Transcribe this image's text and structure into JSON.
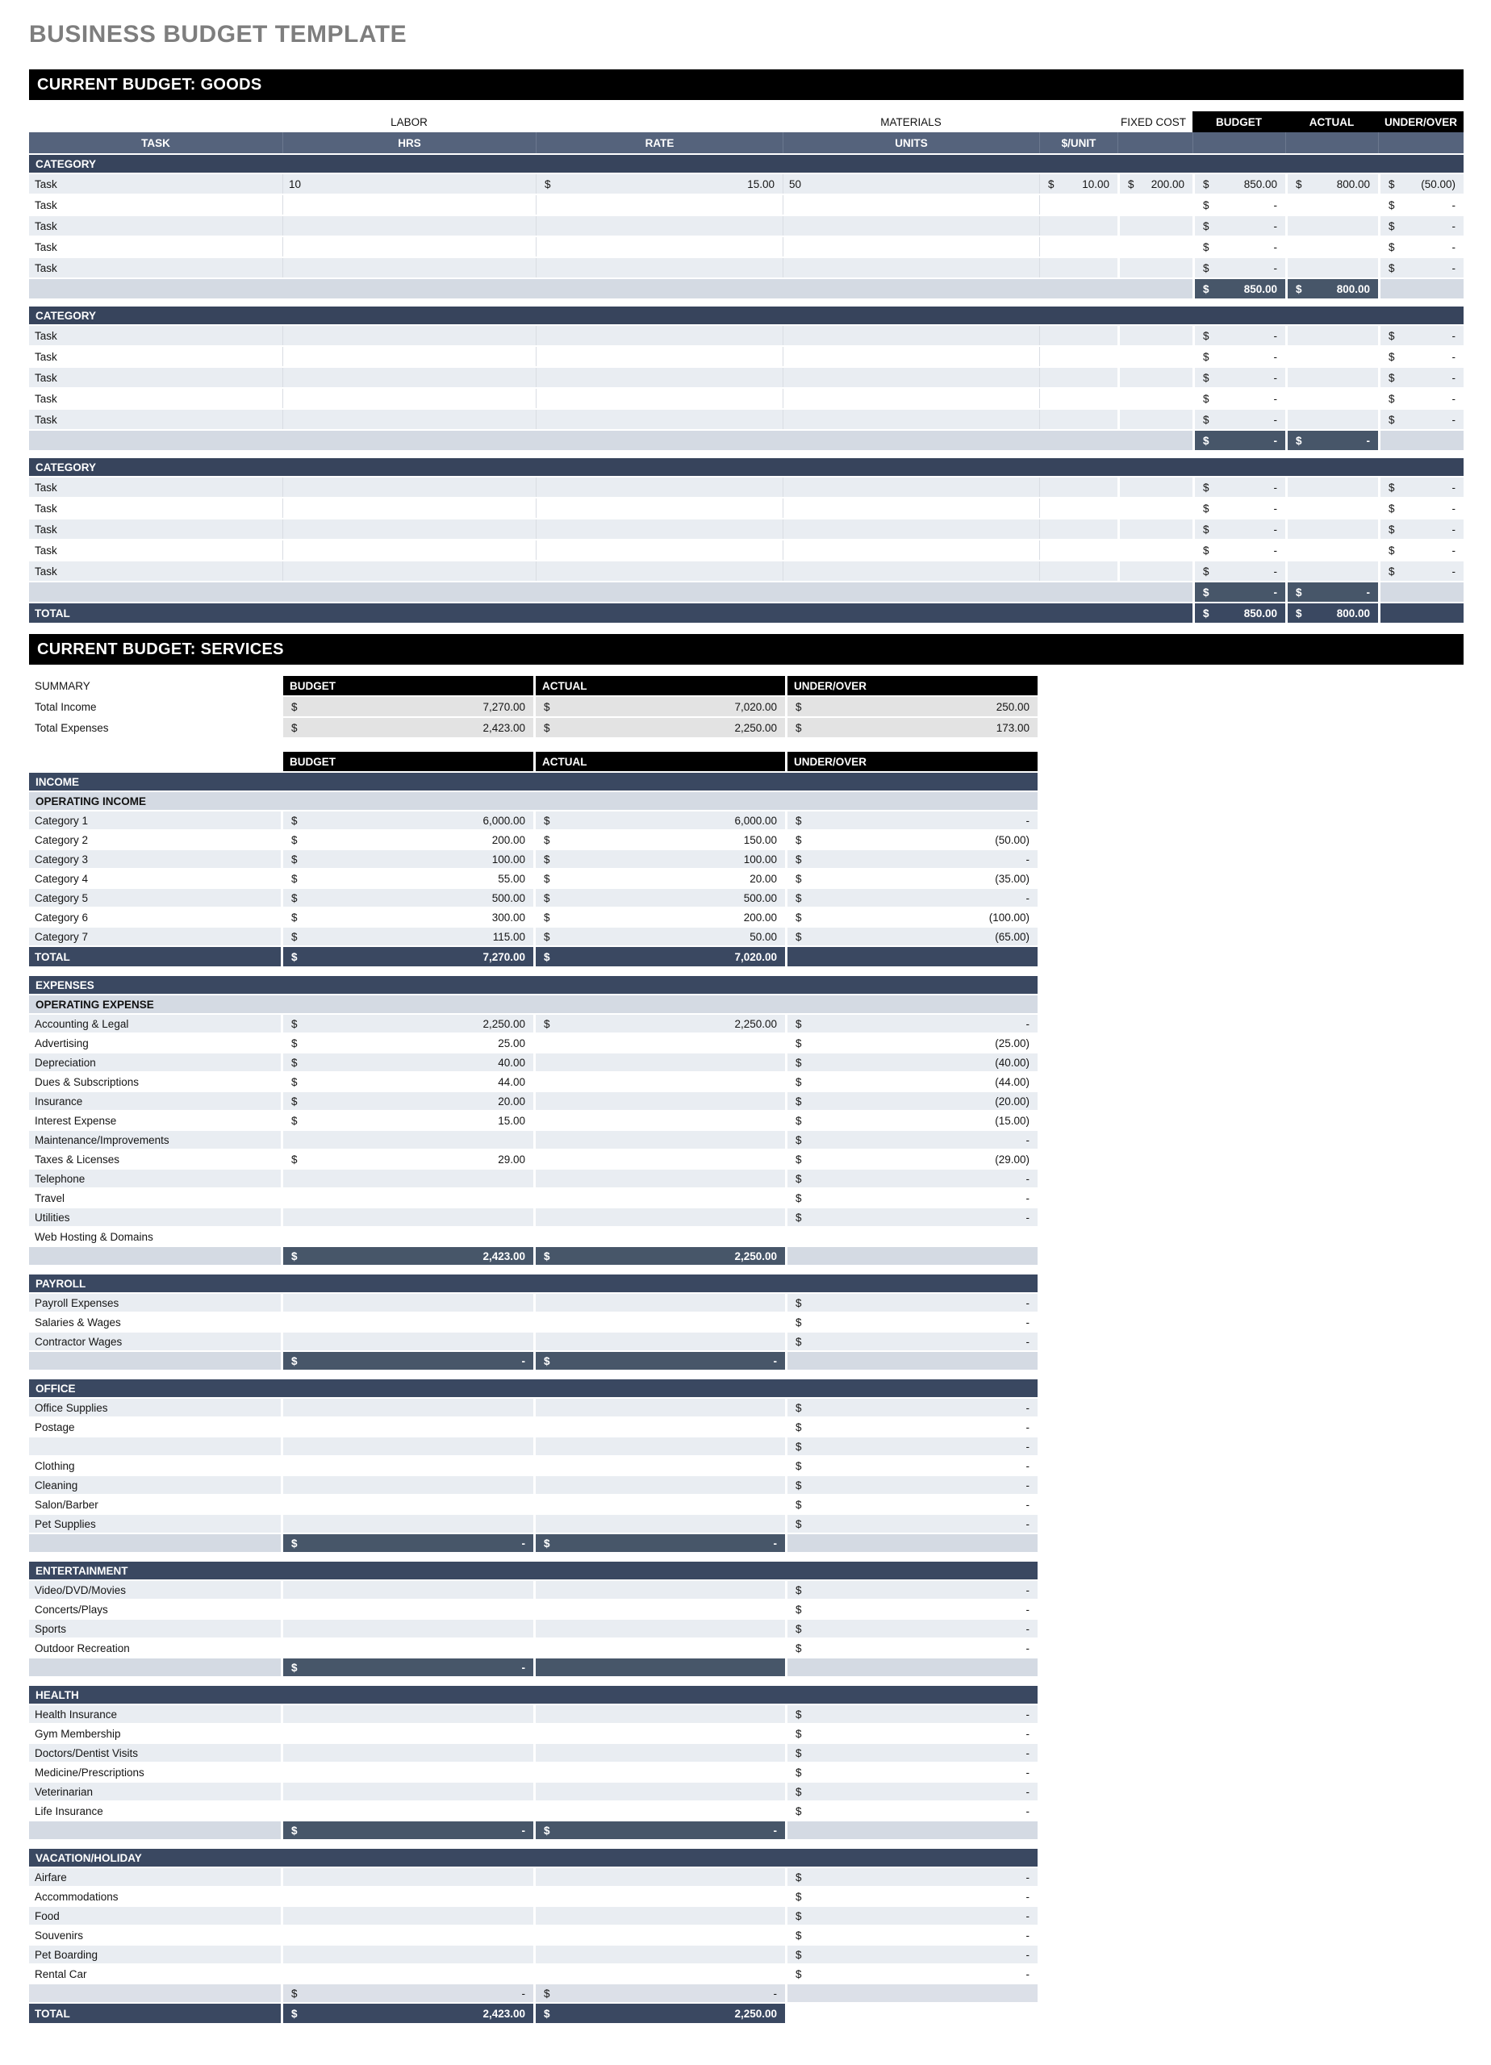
{
  "page": {
    "title": "BUSINESS BUDGET TEMPLATE"
  },
  "colors": {
    "banner_bg": "#000000",
    "section_band": "#3a4861",
    "header_band": "#55637c",
    "category_band": "#37445c",
    "subtotal_dark": "#475669",
    "stripe_light": "#e9edf2",
    "subband_light": "#d4dae3",
    "summary_cell": "#e3e3e3",
    "title_gray": "#7e7e7e"
  },
  "goods": {
    "banner": "CURRENT BUDGET: GOODS",
    "group_labels": {
      "labor": "LABOR",
      "materials": "MATERIALS",
      "fixed_cost": "FIXED COST",
      "budget": "BUDGET",
      "actual": "ACTUAL",
      "under_over": "UNDER/OVER"
    },
    "columns": [
      "TASK",
      "HRS",
      "RATE",
      "UNITS",
      "$/UNIT"
    ],
    "categories": [
      {
        "label": "CATEGORY",
        "rows": [
          {
            "task": "Task",
            "hrs": "10",
            "rate": [
              "$",
              "15.00"
            ],
            "units": "50",
            "unit": [
              "$",
              "10.00"
            ],
            "fixed": [
              "$",
              "200.00"
            ],
            "b": [
              "$",
              "850.00"
            ],
            "a": [
              "$",
              "800.00"
            ],
            "u": [
              "$",
              "(50.00)"
            ]
          },
          {
            "task": "Task",
            "b": [
              "$",
              "-"
            ],
            "u": [
              "$",
              "-"
            ]
          },
          {
            "task": "Task",
            "b": [
              "$",
              "-"
            ],
            "u": [
              "$",
              "-"
            ]
          },
          {
            "task": "Task",
            "b": [
              "$",
              "-"
            ],
            "u": [
              "$",
              "-"
            ]
          },
          {
            "task": "Task",
            "b": [
              "$",
              "-"
            ],
            "u": [
              "$",
              "-"
            ]
          }
        ],
        "subtotal": {
          "b": [
            "$",
            "850.00"
          ],
          "a": [
            "$",
            "800.00"
          ]
        }
      },
      {
        "label": "CATEGORY",
        "rows": [
          {
            "task": "Task",
            "b": [
              "$",
              "-"
            ],
            "u": [
              "$",
              "-"
            ]
          },
          {
            "task": "Task",
            "b": [
              "$",
              "-"
            ],
            "u": [
              "$",
              "-"
            ]
          },
          {
            "task": "Task",
            "b": [
              "$",
              "-"
            ],
            "u": [
              "$",
              "-"
            ]
          },
          {
            "task": "Task",
            "b": [
              "$",
              "-"
            ],
            "u": [
              "$",
              "-"
            ]
          },
          {
            "task": "Task",
            "b": [
              "$",
              "-"
            ],
            "u": [
              "$",
              "-"
            ]
          }
        ],
        "subtotal": {
          "b": [
            "$",
            "-"
          ],
          "a": [
            "$",
            "-"
          ]
        }
      },
      {
        "label": "CATEGORY",
        "rows": [
          {
            "task": "Task",
            "b": [
              "$",
              "-"
            ],
            "u": [
              "$",
              "-"
            ]
          },
          {
            "task": "Task",
            "b": [
              "$",
              "-"
            ],
            "u": [
              "$",
              "-"
            ]
          },
          {
            "task": "Task",
            "b": [
              "$",
              "-"
            ],
            "u": [
              "$",
              "-"
            ]
          },
          {
            "task": "Task",
            "b": [
              "$",
              "-"
            ],
            "u": [
              "$",
              "-"
            ]
          },
          {
            "task": "Task",
            "b": [
              "$",
              "-"
            ],
            "u": [
              "$",
              "-"
            ]
          }
        ],
        "subtotal": {
          "b": [
            "$",
            "-"
          ],
          "a": [
            "$",
            "-"
          ]
        }
      }
    ],
    "total": {
      "label": "TOTAL",
      "b": [
        "$",
        "850.00"
      ],
      "a": [
        "$",
        "800.00"
      ]
    }
  },
  "services": {
    "banner": "CURRENT BUDGET: SERVICES",
    "summary": {
      "label": "SUMMARY",
      "headers": [
        "BUDGET",
        "ACTUAL",
        "UNDER/OVER"
      ],
      "rows": [
        {
          "label": "Total Income",
          "budget": [
            "$",
            "7,270.00"
          ],
          "actual": [
            "$",
            "7,020.00"
          ],
          "under": [
            "$",
            "250.00"
          ]
        },
        {
          "label": "Total Expenses",
          "budget": [
            "$",
            "2,423.00"
          ],
          "actual": [
            "$",
            "2,250.00"
          ],
          "under": [
            "$",
            "173.00"
          ]
        }
      ]
    },
    "headers": [
      "BUDGET",
      "ACTUAL",
      "UNDER/OVER"
    ],
    "blocks": [
      {
        "t": "band",
        "label": "INCOME"
      },
      {
        "t": "subband",
        "label": "OPERATING INCOME"
      },
      {
        "t": "row",
        "label": "Category 1",
        "b": [
          "$",
          "6,000.00"
        ],
        "a": [
          "$",
          "6,000.00"
        ],
        "u": [
          "$",
          "-"
        ]
      },
      {
        "t": "row",
        "label": "Category 2",
        "b": [
          "$",
          "200.00"
        ],
        "a": [
          "$",
          "150.00"
        ],
        "u": [
          "$",
          "(50.00)"
        ]
      },
      {
        "t": "row",
        "label": "Category 3",
        "b": [
          "$",
          "100.00"
        ],
        "a": [
          "$",
          "100.00"
        ],
        "u": [
          "$",
          "-"
        ]
      },
      {
        "t": "row",
        "label": "Category 4",
        "b": [
          "$",
          "55.00"
        ],
        "a": [
          "$",
          "20.00"
        ],
        "u": [
          "$",
          "(35.00)"
        ]
      },
      {
        "t": "row",
        "label": "Category 5",
        "b": [
          "$",
          "500.00"
        ],
        "a": [
          "$",
          "500.00"
        ],
        "u": [
          "$",
          "-"
        ]
      },
      {
        "t": "row",
        "label": "Category 6",
        "b": [
          "$",
          "300.00"
        ],
        "a": [
          "$",
          "200.00"
        ],
        "u": [
          "$",
          "(100.00)"
        ]
      },
      {
        "t": "row",
        "label": "Category 7",
        "b": [
          "$",
          "115.00"
        ],
        "a": [
          "$",
          "50.00"
        ],
        "u": [
          "$",
          "(65.00)"
        ]
      },
      {
        "t": "total",
        "label": "TOTAL",
        "b": [
          "$",
          "7,270.00"
        ],
        "a": [
          "$",
          "7,020.00"
        ]
      },
      {
        "t": "gap"
      },
      {
        "t": "band",
        "label": "EXPENSES"
      },
      {
        "t": "subband",
        "label": "OPERATING EXPENSE"
      },
      {
        "t": "row",
        "label": "Accounting & Legal",
        "b": [
          "$",
          "2,250.00"
        ],
        "a": [
          "$",
          "2,250.00"
        ],
        "u": [
          "$",
          "-"
        ]
      },
      {
        "t": "row",
        "label": "Advertising",
        "b": [
          "$",
          "25.00"
        ],
        "a": null,
        "u": [
          "$",
          "(25.00)"
        ]
      },
      {
        "t": "row",
        "label": "Depreciation",
        "b": [
          "$",
          "40.00"
        ],
        "a": null,
        "u": [
          "$",
          "(40.00)"
        ]
      },
      {
        "t": "row",
        "label": "Dues & Subscriptions",
        "b": [
          "$",
          "44.00"
        ],
        "a": null,
        "u": [
          "$",
          "(44.00)"
        ]
      },
      {
        "t": "row",
        "label": "Insurance",
        "b": [
          "$",
          "20.00"
        ],
        "a": null,
        "u": [
          "$",
          "(20.00)"
        ]
      },
      {
        "t": "row",
        "label": "Interest Expense",
        "b": [
          "$",
          "15.00"
        ],
        "a": null,
        "u": [
          "$",
          "(15.00)"
        ]
      },
      {
        "t": "row",
        "label": "Maintenance/Improvements",
        "b": null,
        "a": null,
        "u": [
          "$",
          "-"
        ]
      },
      {
        "t": "row",
        "label": "Taxes & Licenses",
        "b": [
          "$",
          "29.00"
        ],
        "a": null,
        "u": [
          "$",
          "(29.00)"
        ]
      },
      {
        "t": "row",
        "label": "Telephone",
        "b": null,
        "a": null,
        "u": [
          "$",
          "-"
        ]
      },
      {
        "t": "row",
        "label": "Travel",
        "b": null,
        "a": null,
        "u": [
          "$",
          "-"
        ]
      },
      {
        "t": "row",
        "label": "Utilities",
        "b": null,
        "a": null,
        "u": [
          "$",
          "-"
        ]
      },
      {
        "t": "row",
        "label": "Web Hosting & Domains",
        "b": null,
        "a": null,
        "u": null
      },
      {
        "t": "subtotal",
        "b": [
          "$",
          "2,423.00"
        ],
        "a": [
          "$",
          "2,250.00"
        ]
      },
      {
        "t": "gap"
      },
      {
        "t": "band",
        "label": "PAYROLL"
      },
      {
        "t": "row",
        "label": "Payroll Expenses",
        "b": null,
        "a": null,
        "u": [
          "$",
          "-"
        ]
      },
      {
        "t": "row",
        "label": "Salaries & Wages",
        "b": null,
        "a": null,
        "u": [
          "$",
          "-"
        ]
      },
      {
        "t": "row",
        "label": "Contractor Wages",
        "b": null,
        "a": null,
        "u": [
          "$",
          "-"
        ]
      },
      {
        "t": "subtotal",
        "b": [
          "$",
          "-"
        ],
        "a": [
          "$",
          "-"
        ]
      },
      {
        "t": "gap"
      },
      {
        "t": "band",
        "label": "OFFICE"
      },
      {
        "t": "row",
        "label": "Office Supplies",
        "b": null,
        "a": null,
        "u": [
          "$",
          "-"
        ]
      },
      {
        "t": "row",
        "label": "Postage",
        "b": null,
        "a": null,
        "u": [
          "$",
          "-"
        ]
      },
      {
        "t": "row",
        "label": "",
        "b": null,
        "a": null,
        "u": [
          "$",
          "-"
        ]
      },
      {
        "t": "row",
        "label": "Clothing",
        "b": null,
        "a": null,
        "u": [
          "$",
          "-"
        ]
      },
      {
        "t": "row",
        "label": "Cleaning",
        "b": null,
        "a": null,
        "u": [
          "$",
          "-"
        ]
      },
      {
        "t": "row",
        "label": "Salon/Barber",
        "b": null,
        "a": null,
        "u": [
          "$",
          "-"
        ]
      },
      {
        "t": "row",
        "label": "Pet Supplies",
        "b": null,
        "a": null,
        "u": [
          "$",
          "-"
        ]
      },
      {
        "t": "subtotal",
        "b": [
          "$",
          "-"
        ],
        "a": [
          "$",
          "-"
        ]
      },
      {
        "t": "gap"
      },
      {
        "t": "band",
        "label": "ENTERTAINMENT"
      },
      {
        "t": "row",
        "label": "Video/DVD/Movies",
        "b": null,
        "a": null,
        "u": [
          "$",
          "-"
        ]
      },
      {
        "t": "row",
        "label": "Concerts/Plays",
        "b": null,
        "a": null,
        "u": [
          "$",
          "-"
        ]
      },
      {
        "t": "row",
        "label": "Sports",
        "b": null,
        "a": null,
        "u": [
          "$",
          "-"
        ]
      },
      {
        "t": "row",
        "label": "Outdoor Recreation",
        "b": null,
        "a": null,
        "u": [
          "$",
          "-"
        ]
      },
      {
        "t": "subtotal",
        "b": [
          "$",
          "-"
        ],
        "a": [
          "",
          ""
        ]
      },
      {
        "t": "gap"
      },
      {
        "t": "band",
        "label": "HEALTH"
      },
      {
        "t": "row",
        "label": "Health Insurance",
        "b": null,
        "a": null,
        "u": [
          "$",
          "-"
        ]
      },
      {
        "t": "row",
        "label": "Gym Membership",
        "b": null,
        "a": null,
        "u": [
          "$",
          "-"
        ]
      },
      {
        "t": "row",
        "label": "Doctors/Dentist Visits",
        "b": null,
        "a": null,
        "u": [
          "$",
          "-"
        ]
      },
      {
        "t": "row",
        "label": "Medicine/Prescriptions",
        "b": null,
        "a": null,
        "u": [
          "$",
          "-"
        ]
      },
      {
        "t": "row",
        "label": "Veterinarian",
        "b": null,
        "a": null,
        "u": [
          "$",
          "-"
        ]
      },
      {
        "t": "row",
        "label": "Life Insurance",
        "b": null,
        "a": null,
        "u": [
          "$",
          "-"
        ]
      },
      {
        "t": "subtotal",
        "b": [
          "$",
          "-"
        ],
        "a": [
          "$",
          "-"
        ]
      },
      {
        "t": "gap"
      },
      {
        "t": "band",
        "label": "VACATION/HOLIDAY"
      },
      {
        "t": "row",
        "label": "Airfare",
        "b": null,
        "a": null,
        "u": [
          "$",
          "-"
        ]
      },
      {
        "t": "row",
        "label": "Accommodations",
        "b": null,
        "a": null,
        "u": [
          "$",
          "-"
        ]
      },
      {
        "t": "row",
        "label": "Food",
        "b": null,
        "a": null,
        "u": [
          "$",
          "-"
        ]
      },
      {
        "t": "row",
        "label": "Souvenirs",
        "b": null,
        "a": null,
        "u": [
          "$",
          "-"
        ]
      },
      {
        "t": "row",
        "label": "Pet Boarding",
        "b": null,
        "a": null,
        "u": [
          "$",
          "-"
        ]
      },
      {
        "t": "row",
        "label": "Rental Car",
        "b": null,
        "a": null,
        "u": [
          "$",
          "-"
        ]
      },
      {
        "t": "subtotal_light",
        "b": [
          "$",
          "-"
        ],
        "a": [
          "$",
          "-"
        ]
      },
      {
        "t": "total_final",
        "label": "TOTAL",
        "b": [
          "$",
          "2,423.00"
        ],
        "a": [
          "$",
          "2,250.00"
        ]
      }
    ]
  }
}
